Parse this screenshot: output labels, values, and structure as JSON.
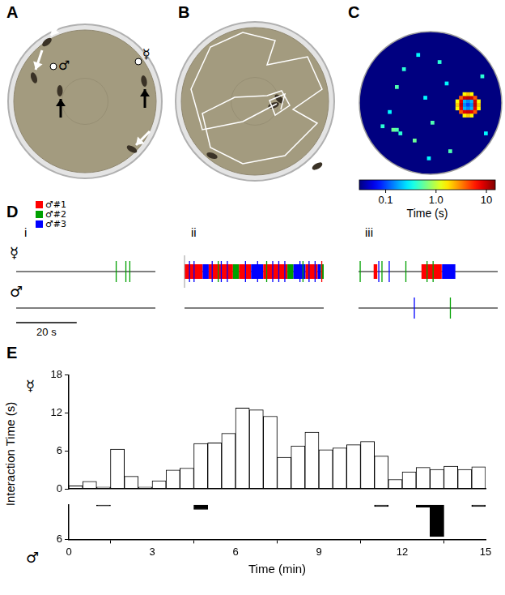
{
  "panel_a": {
    "label": "A",
    "male_symbol": "♂",
    "herm_symbol": "☿"
  },
  "panel_b": {
    "label": "B"
  },
  "panel_c": {
    "label": "C",
    "cells_per_side": 40,
    "clim": [
      0.03,
      15
    ],
    "colorbar_ticks": [
      0.1,
      {
        "value": 1,
        "label": "1.0"
      },
      10
    ],
    "colorbar_label": "Time (s)",
    "cells": [
      [
        29,
        19,
        0.2
      ],
      [
        30,
        19,
        0.15
      ],
      [
        31,
        19,
        0.2
      ],
      [
        29,
        20,
        0.15
      ],
      [
        30,
        20,
        0.1
      ],
      [
        31,
        20,
        0.15
      ],
      [
        29,
        21,
        0.2
      ],
      [
        30,
        21,
        0.15
      ],
      [
        31,
        21,
        0.2
      ],
      [
        28,
        19,
        8
      ],
      [
        28,
        20,
        10
      ],
      [
        28,
        21,
        8
      ],
      [
        32,
        19,
        9
      ],
      [
        32,
        20,
        10
      ],
      [
        32,
        21,
        8
      ],
      [
        29,
        18,
        9
      ],
      [
        30,
        18,
        10
      ],
      [
        31,
        18,
        9
      ],
      [
        29,
        22,
        8
      ],
      [
        30,
        22,
        9
      ],
      [
        31,
        22,
        8
      ],
      [
        28,
        18,
        4
      ],
      [
        32,
        18,
        4
      ],
      [
        28,
        22,
        4
      ],
      [
        32,
        22,
        4
      ],
      [
        27,
        19,
        1.5
      ],
      [
        27,
        20,
        2
      ],
      [
        27,
        21,
        1.5
      ],
      [
        33,
        19,
        1.5
      ],
      [
        33,
        20,
        2
      ],
      [
        33,
        21,
        1.5
      ],
      [
        29,
        17,
        1.5
      ],
      [
        30,
        17,
        2
      ],
      [
        31,
        17,
        1.5
      ],
      [
        29,
        23,
        1.5
      ],
      [
        30,
        23,
        2
      ],
      [
        31,
        23,
        1.5
      ],
      [
        12,
        10,
        0.4
      ],
      [
        20,
        25,
        0.5
      ],
      [
        8,
        22,
        0.3
      ],
      [
        15,
        30,
        0.6
      ],
      [
        22,
        8,
        0.4
      ],
      [
        25,
        33,
        0.5
      ],
      [
        35,
        28,
        0.3
      ],
      [
        10,
        15,
        0.5
      ],
      [
        18,
        18,
        0.3
      ],
      [
        6,
        26,
        0.4
      ],
      [
        9,
        27,
        0.6
      ],
      [
        10,
        27,
        0.5
      ],
      [
        11,
        28,
        0.4
      ],
      [
        24,
        14,
        0.3
      ],
      [
        16,
        6,
        0.3
      ],
      [
        34,
        12,
        0.4
      ],
      [
        19,
        35,
        0.3
      ]
    ]
  },
  "panel_d": {
    "label": "D",
    "herm_symbol": "☿",
    "male_symbol": "♂",
    "window_s": 46,
    "scale_bar": {
      "value": 20,
      "label": "20 s"
    },
    "male_keys": [
      {
        "name": "♂#1",
        "color": "#ff0000"
      },
      {
        "name": "♂#2",
        "color": "#00a000"
      },
      {
        "name": "♂#3",
        "color": "#0000ff"
      }
    ],
    "subpanels": [
      {
        "label": "i",
        "herm": [
          [
            32.9,
            33.2,
            2
          ],
          [
            36.1,
            36.4,
            2
          ],
          [
            37.4,
            37.7,
            2
          ]
        ],
        "male": []
      },
      {
        "label": "ii",
        "herm": [
          [
            0,
            6,
            1
          ],
          [
            6,
            8,
            3
          ],
          [
            8,
            16,
            1
          ],
          [
            16,
            18,
            2
          ],
          [
            18,
            22,
            1
          ],
          [
            22,
            26,
            3
          ],
          [
            26,
            34,
            1
          ],
          [
            34,
            36,
            2
          ],
          [
            36,
            40,
            3
          ],
          [
            40,
            44,
            1
          ],
          [
            44,
            45,
            3
          ],
          [
            45,
            46,
            2
          ],
          [
            1.5,
            1.8,
            3
          ],
          [
            3,
            3.3,
            3
          ],
          [
            9,
            9.3,
            3
          ],
          [
            12,
            12.3,
            3
          ],
          [
            14,
            14.3,
            3
          ],
          [
            20,
            20.3,
            3
          ],
          [
            24,
            24.3,
            3
          ],
          [
            29,
            29.3,
            3
          ],
          [
            31,
            31.3,
            3
          ],
          [
            33,
            33.3,
            3
          ],
          [
            38,
            38.3,
            3
          ],
          [
            41,
            41.3,
            3
          ],
          [
            43,
            43.3,
            3
          ],
          [
            11,
            11.3,
            2
          ],
          [
            27,
            27.3,
            2
          ],
          [
            39,
            39.3,
            2
          ],
          [
            45.2,
            45.5,
            1
          ]
        ],
        "male": []
      },
      {
        "label": "iii",
        "herm": [
          [
            0.4,
            0.7,
            2
          ],
          [
            5,
            6.2,
            1
          ],
          [
            6.5,
            6.9,
            3
          ],
          [
            7.6,
            7.9,
            2
          ],
          [
            10,
            10.3,
            3
          ],
          [
            15.5,
            15.8,
            2
          ],
          [
            20.8,
            27.5,
            1
          ],
          [
            22.5,
            22.8,
            2
          ],
          [
            24.5,
            24.8,
            2
          ],
          [
            27.6,
            32,
            3
          ]
        ],
        "male": [
          [
            18.2,
            18.7,
            3
          ],
          [
            30.2,
            30.5,
            2
          ]
        ]
      }
    ]
  },
  "chart_data": {
    "type": "bar",
    "label": "E",
    "x_label": "Time (min)",
    "y_label": "Interaction Time (s)",
    "bins": [
      0,
      0.5,
      1,
      1.5,
      2,
      2.5,
      3,
      3.5,
      4,
      4.5,
      5,
      5.5,
      6,
      6.5,
      7,
      7.5,
      8,
      8.5,
      9,
      9.5,
      10,
      10.5,
      11,
      11.5,
      12,
      12.5,
      13,
      13.5,
      14,
      14.5,
      15
    ],
    "xlim": [
      0,
      15
    ],
    "xticks": [
      0,
      3,
      6,
      9,
      12,
      15
    ],
    "series": [
      {
        "name": "☿",
        "color": "#ffffff",
        "ylim": [
          0,
          18
        ],
        "yticks": [
          0,
          6,
          12,
          18
        ],
        "values": [
          0.5,
          1.2,
          0.3,
          6.3,
          2,
          0.3,
          1.3,
          3,
          3.3,
          7.2,
          7.3,
          8.8,
          12.8,
          12.5,
          11.5,
          5,
          6.8,
          9,
          6.2,
          6.5,
          7,
          7.5,
          5.2,
          1.5,
          2.7,
          3.4,
          3.1,
          3.6,
          3.1,
          3.5
        ]
      },
      {
        "name": "♂",
        "color": "#000000",
        "ylim": [
          0,
          6
        ],
        "yticks": [
          6
        ],
        "values": [
          0,
          0,
          0.2,
          0,
          0,
          0,
          0,
          0,
          0,
          0.8,
          0,
          0,
          0,
          0,
          0,
          0,
          0,
          0,
          0,
          0,
          0,
          0,
          0.3,
          0,
          0,
          0.4,
          5.5,
          0,
          0,
          0.3
        ]
      }
    ]
  }
}
